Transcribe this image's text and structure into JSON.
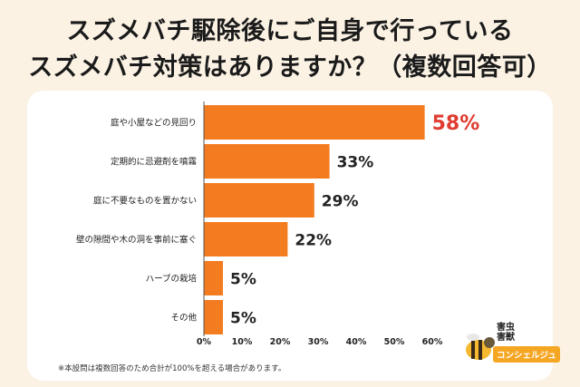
{
  "header": {
    "title_line1": "スズメバチ駆除後にご自身で行っている",
    "title_line2": "スズメバチ対策はありますか？（複数回答可）"
  },
  "chart_data": {
    "type": "bar",
    "orientation": "horizontal",
    "categories": [
      "庭や小屋などの見回り",
      "定期的に忌避剤を噴霧",
      "庭に不要なものを置かない",
      "壁の隙間や木の洞を事前に塞ぐ",
      "ハーブの栽培",
      "その他"
    ],
    "values": [
      58,
      33,
      29,
      22,
      5,
      5
    ],
    "value_labels": [
      "58%",
      "33%",
      "29%",
      "22%",
      "5%",
      "5%"
    ],
    "xlim": [
      0,
      60
    ],
    "xticks": [
      "0%",
      "10%",
      "20%",
      "30%",
      "40%",
      "50%",
      "60%"
    ],
    "bar_color": "#f47c20",
    "highlight_label_color": "#e03c31",
    "label_color": "#222222",
    "grid": false
  },
  "footnote": "※本設問は複数回答のため合計が100%を超える場合があります。",
  "logo": {
    "line1": "害虫",
    "line2": "害獣",
    "banner": "コンシェルジュ"
  }
}
